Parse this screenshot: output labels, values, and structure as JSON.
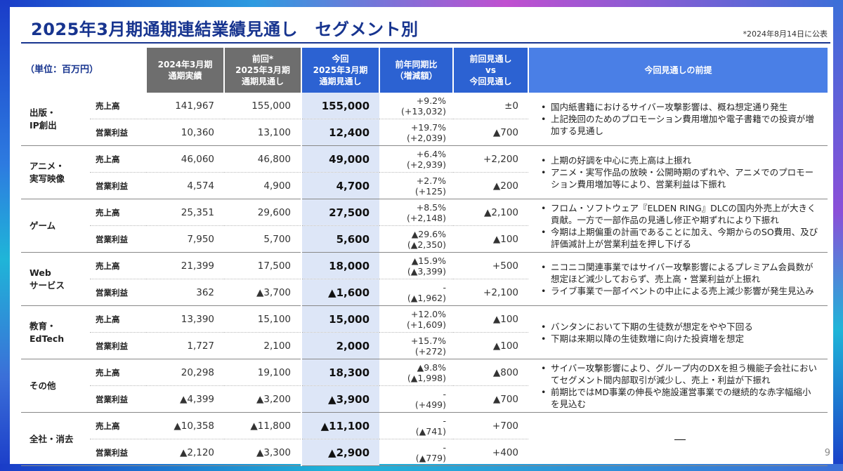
{
  "title": "2025年3月期通期連結業績見通し　セグメント別",
  "date_note": "*2024年8月14日に公表",
  "page_number": "9",
  "table": {
    "unit_label": "（単位：百万円）",
    "headers": {
      "actual_2024": [
        "2024年3月期",
        "通期実績"
      ],
      "prev_forecast": [
        "前回*",
        "2025年3月期",
        "通期見通し"
      ],
      "cur_forecast": [
        "今回",
        "2025年3月期",
        "通期見通し"
      ],
      "yoy": [
        "前年同期比",
        "（増減額）"
      ],
      "vs": [
        "前回見通し",
        "vs",
        "今回見通し"
      ],
      "premise": "今回見通しの前提"
    },
    "metric_labels": {
      "sales": "売上高",
      "op": "営業利益"
    },
    "segments": [
      {
        "name": [
          "出版・",
          "IP創出"
        ],
        "sales": {
          "actual": "141,967",
          "prev": "155,000",
          "cur": "155,000",
          "yoy_pct": "+9.2%",
          "yoy_amt": "(+13,032)",
          "vs": "±0"
        },
        "op": {
          "actual": "10,360",
          "prev": "13,100",
          "cur": "12,400",
          "yoy_pct": "+19.7%",
          "yoy_amt": "(+2,039)",
          "vs": "▲700"
        },
        "premise": [
          "国内紙書籍におけるサイバー攻撃影響は、概ね想定通り発生",
          "上記挽回のためのプロモーション費用増加や電子書籍での投資が増加する見通し"
        ]
      },
      {
        "name": [
          "アニメ・",
          "実写映像"
        ],
        "sales": {
          "actual": "46,060",
          "prev": "46,800",
          "cur": "49,000",
          "yoy_pct": "+6.4%",
          "yoy_amt": "(+2,939)",
          "vs": "+2,200"
        },
        "op": {
          "actual": "4,574",
          "prev": "4,900",
          "cur": "4,700",
          "yoy_pct": "+2.7%",
          "yoy_amt": "(+125)",
          "vs": "▲200"
        },
        "premise": [
          "上期の好調を中心に売上高は上振れ",
          "アニメ・実写作品の放映・公開時期のずれや、アニメでのプロモーション費用増加等により、営業利益は下振れ"
        ]
      },
      {
        "name": [
          "ゲーム"
        ],
        "sales": {
          "actual": "25,351",
          "prev": "29,600",
          "cur": "27,500",
          "yoy_pct": "+8.5%",
          "yoy_amt": "(+2,148)",
          "vs": "▲2,100"
        },
        "op": {
          "actual": "7,950",
          "prev": "5,700",
          "cur": "5,600",
          "yoy_pct": "▲29.6%",
          "yoy_amt": "(▲2,350)",
          "vs": "▲100"
        },
        "premise": [
          "フロム・ソフトウェア『ELDEN RING』DLCの国内外売上が大きく貢献。一方で一部作品の見通し修正や期ずれにより下振れ",
          "今期は上期偏重の計画であることに加え、今期からのSO費用、及び評価減計上が営業利益を押し下げる"
        ]
      },
      {
        "name": [
          "Web",
          "サービス"
        ],
        "sales": {
          "actual": "21,399",
          "prev": "17,500",
          "cur": "18,000",
          "yoy_pct": "▲15.9%",
          "yoy_amt": "(▲3,399)",
          "vs": "+500"
        },
        "op": {
          "actual": "362",
          "prev": "▲3,700",
          "cur": "▲1,600",
          "yoy_pct": "-",
          "yoy_amt": "(▲1,962)",
          "vs": "+2,100"
        },
        "premise": [
          "ニコニコ関連事業ではサイバー攻撃影響によるプレミアム会員数が想定ほど減少しておらず、売上高・営業利益が上振れ",
          "ライブ事業で一部イベントの中止による売上減少影響が発生見込み"
        ]
      },
      {
        "name": [
          "教育・",
          "EdTech"
        ],
        "sales": {
          "actual": "13,390",
          "prev": "15,100",
          "cur": "15,000",
          "yoy_pct": "+12.0%",
          "yoy_amt": "(+1,609)",
          "vs": "▲100"
        },
        "op": {
          "actual": "1,727",
          "prev": "2,100",
          "cur": "2,000",
          "yoy_pct": "+15.7%",
          "yoy_amt": "(+272)",
          "vs": "▲100"
        },
        "premise": [
          "バンタンにおいて下期の生徒数が想定をやや下回る",
          "下期は来期以降の生徒数増に向けた投資増を想定"
        ]
      },
      {
        "name": [
          "その他"
        ],
        "sales": {
          "actual": "20,298",
          "prev": "19,100",
          "cur": "18,300",
          "yoy_pct": "▲9.8%",
          "yoy_amt": "(▲1,998)",
          "vs": "▲800"
        },
        "op": {
          "actual": "▲4,399",
          "prev": "▲3,200",
          "cur": "▲3,900",
          "yoy_pct": "-",
          "yoy_amt": "(+499)",
          "vs": "▲700"
        },
        "premise": [
          "サイバー攻撃影響により、グループ内のDXを担う機能子会社においてセグメント間内部取引が減少し、売上・利益が下振れ",
          "前期比ではMD事業の伸長や施設運営事業での継続的な赤字幅縮小を見込む"
        ]
      },
      {
        "name": [
          "全社・消去"
        ],
        "sales": {
          "actual": "▲10,358",
          "prev": "▲11,800",
          "cur": "▲11,100",
          "yoy_pct": "-",
          "yoy_amt": "(▲741)",
          "vs": "+700"
        },
        "op": {
          "actual": "▲2,120",
          "prev": "▲3,300",
          "cur": "▲2,900",
          "yoy_pct": "-",
          "yoy_amt": "(▲779)",
          "vs": "+400"
        },
        "premise_dash": "―"
      }
    ]
  }
}
